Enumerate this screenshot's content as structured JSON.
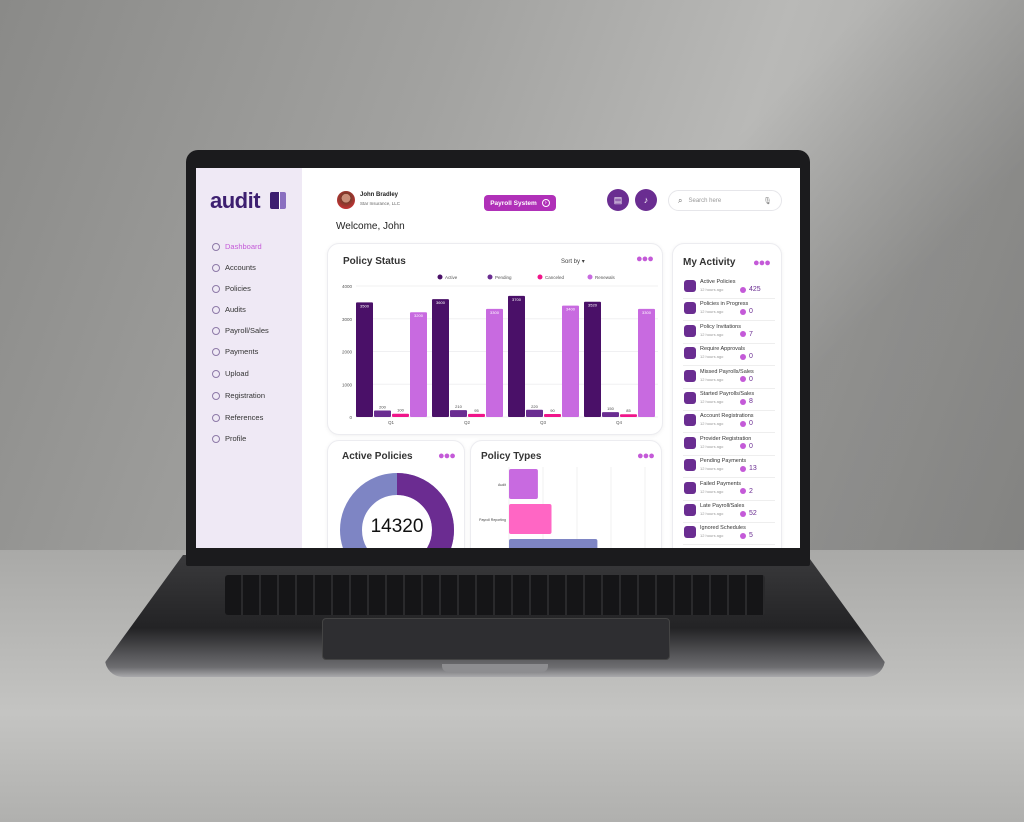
{
  "app": {
    "logo": "audit"
  },
  "sidebar": {
    "items": [
      {
        "label": "Dashboard",
        "icon": "gauge-icon",
        "active": true
      },
      {
        "label": "Accounts",
        "icon": "user-circle-icon"
      },
      {
        "label": "Policies",
        "icon": "document-icon"
      },
      {
        "label": "Audits",
        "icon": "search-icon"
      },
      {
        "label": "Payroll/Sales",
        "icon": "payroll-icon"
      },
      {
        "label": "Payments",
        "icon": "card-icon"
      },
      {
        "label": "Upload",
        "icon": "upload-icon"
      },
      {
        "label": "Registration",
        "icon": "registration-icon"
      },
      {
        "label": "References",
        "icon": "references-icon"
      },
      {
        "label": "Profile",
        "icon": "profile-icon"
      }
    ]
  },
  "header": {
    "user_name": "John Bradley",
    "company": "Star Insurance, LLC",
    "payroll_button": "Payroll System",
    "search_placeholder": "Search here",
    "welcome": "Welcome, John"
  },
  "policy_status": {
    "title": "Policy Status",
    "sort_label": "Sort by"
  },
  "active_policies": {
    "title": "Active Policies",
    "total": "14320",
    "donut_fraction": 0.42
  },
  "policy_types": {
    "title": "Policy Types",
    "categories": [
      "Audit",
      "Payroll Reporting",
      ""
    ],
    "values": [
      0.17,
      0.25,
      0.52
    ]
  },
  "activity": {
    "title": "My Activity",
    "items": [
      {
        "label": "Active Policies",
        "time": "12 hours ago",
        "count": "425"
      },
      {
        "label": "Policies in Progress",
        "time": "12 hours ago",
        "count": "0"
      },
      {
        "label": "Policy Invitations",
        "time": "12 hours ago",
        "count": "7"
      },
      {
        "label": "Require Approvals",
        "time": "12 hours ago",
        "count": "0"
      },
      {
        "label": "Missed Payrolls/Sales",
        "time": "12 hours ago",
        "count": "0"
      },
      {
        "label": "Started Payrolls/Sales",
        "time": "12 hours ago",
        "count": "8"
      },
      {
        "label": "Account Registrations",
        "time": "12 hours ago",
        "count": "0"
      },
      {
        "label": "Provider Registration",
        "time": "12 hours ago",
        "count": "0"
      },
      {
        "label": "Pending Payments",
        "time": "12 hours ago",
        "count": "13"
      },
      {
        "label": "Failed Payments",
        "time": "12 hours ago",
        "count": "2"
      },
      {
        "label": "Late Payroll/Sales",
        "time": "12 hours ago",
        "count": "52"
      },
      {
        "label": "Ignored Schedules",
        "time": "12 hours ago",
        "count": "5"
      }
    ]
  },
  "chart_data": {
    "type": "bar",
    "categories": [
      "Q1",
      "Q2",
      "Q3",
      "Q4"
    ],
    "ylim": [
      0,
      4000
    ],
    "yticks": [
      "0",
      "1000",
      "2000",
      "3000",
      "4000"
    ],
    "legend": "top",
    "grid": true,
    "series": [
      {
        "name": "Active",
        "color": "#4a1068",
        "values": [
          3500,
          3600,
          3700,
          3520
        ]
      },
      {
        "name": "Pending",
        "color": "#6a2d91",
        "values": [
          200,
          210,
          220,
          150
        ]
      },
      {
        "name": "Canceled",
        "color": "#f0158a",
        "values": [
          100,
          95,
          90,
          85
        ]
      },
      {
        "name": "Renewals",
        "color": "#c86ae0",
        "values": [
          3200,
          3300,
          3400,
          3300
        ]
      }
    ]
  }
}
